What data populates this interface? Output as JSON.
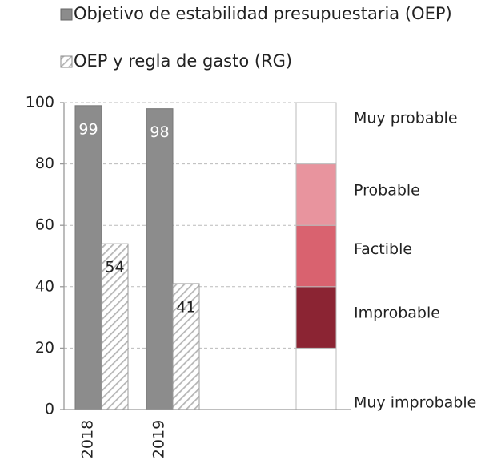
{
  "chart_data": {
    "type": "bar",
    "categories": [
      "2018",
      "2019"
    ],
    "series": [
      {
        "name": "Objetivo  de estabilidad presupuestaria (OEP)",
        "color": "#8c8c8c",
        "pattern": "solid",
        "values": [
          99,
          98
        ]
      },
      {
        "name": "OEP y regla de gasto (RG)",
        "color": "#b5b5b5",
        "pattern": "hatch",
        "values": [
          54,
          41
        ]
      }
    ],
    "ylim": [
      0,
      100
    ],
    "yticks": [
      0,
      20,
      40,
      60,
      80,
      100
    ],
    "grid": true,
    "scale": [
      {
        "label": "Muy improbable",
        "from": 0,
        "to": 20,
        "color": "#ffffff"
      },
      {
        "label": "Improbable",
        "from": 20,
        "to": 40,
        "color": "#8b2433"
      },
      {
        "label": "Factible",
        "from": 40,
        "to": 60,
        "color": "#d9626f"
      },
      {
        "label": "Probable",
        "from": 60,
        "to": 80,
        "color": "#e8949e"
      },
      {
        "label": "Muy probable",
        "from": 80,
        "to": 100,
        "color": "#ffffff"
      }
    ]
  }
}
